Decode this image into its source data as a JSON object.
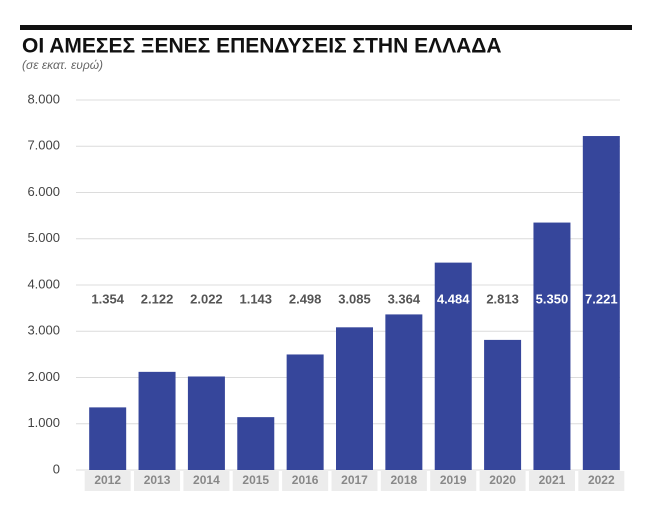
{
  "chart_data": {
    "type": "bar",
    "title": "ΟΙ ΑΜΕΣΕΣ ΞΕΝΕΣ ΕΠΕΝΔΥΣΕΙΣ ΣΤΗΝ ΕΛΛΑΔΑ",
    "subtitle": "(σε εκατ. ευρώ)",
    "categories": [
      "2012",
      "2013",
      "2014",
      "2015",
      "2016",
      "2017",
      "2018",
      "2019",
      "2020",
      "2021",
      "2022"
    ],
    "values": [
      1354,
      2122,
      2022,
      1143,
      2498,
      3085,
      3364,
      4484,
      2813,
      5350,
      7221
    ],
    "value_labels": [
      "1.354",
      "2.122",
      "2.022",
      "1.143",
      "2.498",
      "3.085",
      "3.364",
      "4.484",
      "2.813",
      "5.350",
      "7.221"
    ],
    "color": "#36469b",
    "ylim": [
      0,
      8000
    ],
    "yticks": [
      0,
      {
        "value": 1000,
        "label": "1.000"
      },
      {
        "value": 2000,
        "label": "2.000"
      },
      {
        "value": 3000,
        "label": "3.000"
      },
      {
        "value": 4000,
        "label": "4.000"
      },
      {
        "value": 5000,
        "label": "5.000"
      },
      {
        "value": 6000,
        "label": "6.000"
      },
      {
        "value": 7000,
        "label": "7.000"
      },
      {
        "value": 8000,
        "label": "8.000"
      }
    ],
    "grid": true
  }
}
